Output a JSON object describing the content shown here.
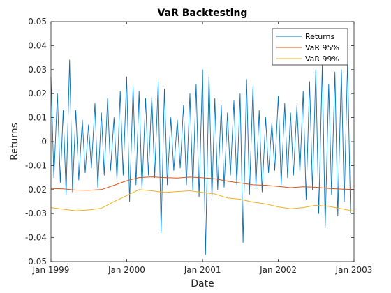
{
  "chart_data": {
    "type": "line",
    "title": "VaR Backtesting",
    "xlabel": "Date",
    "ylabel": "Returns",
    "xlim": [
      "1999-01-01",
      "2003-01-01"
    ],
    "ylim": [
      -0.05,
      0.05
    ],
    "x_ticks": [
      {
        "date": "1999-01-01",
        "label": "Jan 1999"
      },
      {
        "date": "2000-01-01",
        "label": "Jan 2000"
      },
      {
        "date": "2001-01-01",
        "label": "Jan 2001"
      },
      {
        "date": "2002-01-01",
        "label": "Jan 2002"
      },
      {
        "date": "2003-01-01",
        "label": "Jan 2003"
      }
    ],
    "y_ticks": [
      0.05,
      0.04,
      0.03,
      0.02,
      0.01,
      0,
      -0.01,
      -0.02,
      -0.03,
      -0.04,
      -0.05
    ],
    "y_tick_labels": [
      "0.05",
      "0.04",
      "0.03",
      "0.02",
      "0.01",
      "0",
      "-0.01",
      "-0.02",
      "-0.03",
      "-0.04",
      "-0.05"
    ],
    "grid": false,
    "legend_location": "top-right",
    "series": [
      {
        "name": "Returns",
        "color": "#0072BD",
        "x": [
          "1999-01-01",
          "1999-01-15",
          "1999-02-01",
          "1999-02-15",
          "1999-03-01",
          "1999-03-15",
          "1999-04-01",
          "1999-04-15",
          "1999-05-01",
          "1999-05-15",
          "1999-06-01",
          "1999-06-15",
          "1999-07-01",
          "1999-07-15",
          "1999-08-01",
          "1999-08-15",
          "1999-09-01",
          "1999-09-15",
          "1999-10-01",
          "1999-10-15",
          "1999-11-01",
          "1999-11-15",
          "1999-12-01",
          "1999-12-15",
          "2000-01-01",
          "2000-01-15",
          "2000-02-01",
          "2000-02-15",
          "2000-03-01",
          "2000-03-15",
          "2000-04-01",
          "2000-04-15",
          "2000-05-01",
          "2000-05-15",
          "2000-06-01",
          "2000-06-15",
          "2000-07-01",
          "2000-07-15",
          "2000-08-01",
          "2000-08-15",
          "2000-09-01",
          "2000-09-15",
          "2000-10-01",
          "2000-10-15",
          "2000-11-01",
          "2000-11-15",
          "2000-12-01",
          "2000-12-15",
          "2001-01-01",
          "2001-01-15",
          "2001-02-01",
          "2001-02-15",
          "2001-03-01",
          "2001-03-15",
          "2001-04-01",
          "2001-04-15",
          "2001-05-01",
          "2001-05-15",
          "2001-06-01",
          "2001-06-15",
          "2001-07-01",
          "2001-07-15",
          "2001-08-01",
          "2001-08-15",
          "2001-09-01",
          "2001-09-15",
          "2001-10-01",
          "2001-10-15",
          "2001-11-01",
          "2001-11-15",
          "2001-12-01",
          "2001-12-15",
          "2002-01-01",
          "2002-01-15",
          "2002-02-01",
          "2002-02-15",
          "2002-03-01",
          "2002-03-15",
          "2002-04-01",
          "2002-04-15",
          "2002-05-01",
          "2002-05-15",
          "2002-06-01",
          "2002-06-15",
          "2002-07-01",
          "2002-07-15",
          "2002-08-01",
          "2002-08-15",
          "2002-09-01",
          "2002-09-15",
          "2002-10-01",
          "2002-10-15",
          "2002-11-01",
          "2002-11-15",
          "2002-12-01",
          "2002-12-15"
        ],
        "y": [
          0.027,
          -0.015,
          0.02,
          -0.017,
          0.013,
          -0.022,
          0.034,
          -0.021,
          0.013,
          -0.016,
          0.009,
          -0.013,
          0.007,
          -0.011,
          0.016,
          -0.019,
          0.012,
          -0.014,
          0.018,
          -0.012,
          0.01,
          -0.016,
          0.021,
          -0.014,
          0.027,
          -0.025,
          0.023,
          -0.018,
          0.021,
          -0.02,
          0.018,
          -0.014,
          0.019,
          -0.015,
          0.025,
          -0.038,
          0.022,
          -0.018,
          0.01,
          -0.012,
          0.009,
          -0.011,
          0.015,
          -0.018,
          0.02,
          -0.02,
          0.024,
          -0.023,
          0.03,
          -0.047,
          0.028,
          -0.024,
          0.018,
          -0.02,
          0.015,
          -0.019,
          0.012,
          -0.014,
          0.017,
          -0.018,
          0.02,
          -0.042,
          0.026,
          -0.022,
          0.023,
          -0.019,
          0.013,
          -0.021,
          0.01,
          -0.013,
          0.008,
          -0.012,
          0.019,
          -0.018,
          0.016,
          -0.015,
          0.012,
          -0.014,
          0.015,
          -0.013,
          0.021,
          -0.024,
          0.025,
          -0.02,
          0.03,
          -0.03,
          0.032,
          -0.036,
          0.024,
          -0.022,
          0.029,
          -0.031,
          0.03,
          -0.025,
          0.033,
          -0.03
        ]
      },
      {
        "name": "VaR 95%",
        "color": "#D95319",
        "x": [
          "1999-01-01",
          "1999-03-01",
          "1999-05-01",
          "1999-07-01",
          "1999-09-01",
          "1999-11-01",
          "2000-01-01",
          "2000-03-01",
          "2000-05-01",
          "2000-07-01",
          "2000-09-01",
          "2000-11-01",
          "2001-01-01",
          "2001-03-01",
          "2001-05-01",
          "2001-07-01",
          "2001-09-01",
          "2001-11-01",
          "2002-01-01",
          "2002-03-01",
          "2002-05-01",
          "2002-07-01",
          "2002-09-01",
          "2002-11-01",
          "2003-01-01"
        ],
        "y": [
          -0.0195,
          -0.0197,
          -0.0202,
          -0.0203,
          -0.02,
          -0.0182,
          -0.0163,
          -0.015,
          -0.0147,
          -0.015,
          -0.0152,
          -0.0148,
          -0.0151,
          -0.0155,
          -0.0165,
          -0.0172,
          -0.018,
          -0.0182,
          -0.0187,
          -0.0192,
          -0.0188,
          -0.019,
          -0.0195,
          -0.0198,
          -0.02
        ]
      },
      {
        "name": "VaR 99%",
        "color": "#EDB120",
        "x": [
          "1999-01-01",
          "1999-03-01",
          "1999-05-01",
          "1999-07-01",
          "1999-09-01",
          "1999-11-01",
          "2000-01-01",
          "2000-03-01",
          "2000-05-01",
          "2000-07-01",
          "2000-09-01",
          "2000-11-01",
          "2001-01-01",
          "2001-03-01",
          "2001-05-01",
          "2001-07-01",
          "2001-09-01",
          "2001-11-01",
          "2002-01-01",
          "2002-03-01",
          "2002-05-01",
          "2002-07-01",
          "2002-09-01",
          "2002-11-01",
          "2003-01-01"
        ],
        "y": [
          -0.0275,
          -0.0282,
          -0.0288,
          -0.0285,
          -0.0278,
          -0.025,
          -0.0225,
          -0.02,
          -0.0205,
          -0.0212,
          -0.0208,
          -0.0205,
          -0.0212,
          -0.0218,
          -0.0235,
          -0.024,
          -0.0252,
          -0.026,
          -0.0272,
          -0.028,
          -0.0275,
          -0.0265,
          -0.027,
          -0.028,
          -0.029
        ]
      }
    ]
  }
}
